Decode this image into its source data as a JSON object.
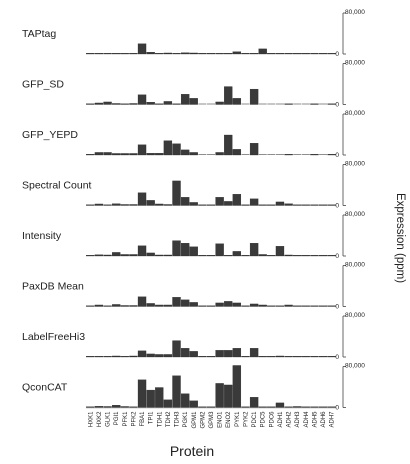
{
  "chart_data": {
    "type": "bar",
    "xlabel": "Protein",
    "ylabel": "Expression (ppm)",
    "ylim": [
      0,
      80000
    ],
    "yticks": [
      "80,000",
      "0"
    ],
    "categories": [
      "HXK1",
      "HXK2",
      "GLK1",
      "PGI1",
      "PFK1",
      "PFK2",
      "FBA1",
      "TPI1",
      "TDH1",
      "TDH2",
      "TDH3",
      "PGK1",
      "GPM1",
      "GPM2",
      "GPM3",
      "ENO1",
      "ENO2",
      "PYK1",
      "PYK2",
      "PDC1",
      "PDC5",
      "PDC6",
      "ADH1",
      "ADH2",
      "ADH3",
      "ADH4",
      "ADH5",
      "ADH6",
      "ADH7"
    ],
    "series": [
      {
        "name": "TAPtag",
        "values": [
          200,
          1500,
          1500,
          1200,
          800,
          1200,
          20000,
          3500,
          1500,
          2000,
          1500,
          2500,
          2000,
          500,
          300,
          1000,
          500,
          4500,
          500,
          1000,
          10000,
          1000,
          600,
          600,
          600,
          400,
          400,
          400,
          400
        ]
      },
      {
        "name": "GFP_SD",
        "values": [
          500,
          3000,
          5000,
          2000,
          1500,
          2000,
          19000,
          4500,
          1000,
          6000,
          1500,
          20000,
          12000,
          null,
          null,
          5000,
          35000,
          12000,
          null,
          30000,
          null,
          null,
          null,
          500,
          null,
          null,
          500,
          null,
          500
        ]
      },
      {
        "name": "GFP_YEPD",
        "values": [
          500,
          5000,
          5000,
          3000,
          3000,
          3000,
          20000,
          3500,
          3500,
          28000,
          22000,
          10000,
          5000,
          null,
          null,
          5000,
          39000,
          11000,
          null,
          23000,
          null,
          null,
          null,
          500,
          null,
          null,
          500,
          null,
          500
        ]
      },
      {
        "name": "Spectral Count",
        "values": [
          1000,
          3000,
          1000,
          3500,
          2000,
          2000,
          25000,
          10000,
          3000,
          2000,
          48000,
          16000,
          6000,
          1000,
          500,
          16000,
          8000,
          22000,
          1000,
          13000,
          1000,
          1000,
          7000,
          3500,
          1000,
          500,
          500,
          500,
          500
        ]
      },
      {
        "name": "Intensity",
        "values": [
          500,
          2500,
          2000,
          7000,
          3000,
          3000,
          20000,
          6000,
          2000,
          2000,
          30000,
          25000,
          18000,
          500,
          300,
          24000,
          1000,
          9000,
          1000,
          25000,
          3000,
          500,
          19000,
          2000,
          1000,
          300,
          300,
          300,
          300
        ]
      },
      {
        "name": "PaxDB Mean",
        "values": [
          500,
          3000,
          1500,
          4000,
          2000,
          2000,
          19000,
          6000,
          3000,
          3000,
          18000,
          13000,
          8000,
          1000,
          500,
          7000,
          10000,
          7000,
          1000,
          5000,
          3000,
          1000,
          1000,
          3000,
          500,
          300,
          300,
          300,
          300
        ]
      },
      {
        "name": "LabelFreeHi3",
        "values": [
          800,
          1500,
          1500,
          2000,
          1500,
          2000,
          12000,
          6000,
          5000,
          5000,
          32000,
          17000,
          11000,
          500,
          300,
          13000,
          13000,
          17000,
          500,
          17000,
          1000,
          500,
          2000,
          1000,
          500,
          300,
          300,
          300,
          300
        ]
      },
      {
        "name": "QconCAT",
        "values": [
          500,
          2500,
          2000,
          4500,
          2000,
          1500,
          54000,
          34000,
          39000,
          15000,
          62000,
          27000,
          13000,
          500,
          300,
          47000,
          44000,
          82000,
          500,
          20000,
          500,
          500,
          9000,
          500,
          2000,
          500,
          500,
          500,
          500
        ]
      }
    ]
  }
}
